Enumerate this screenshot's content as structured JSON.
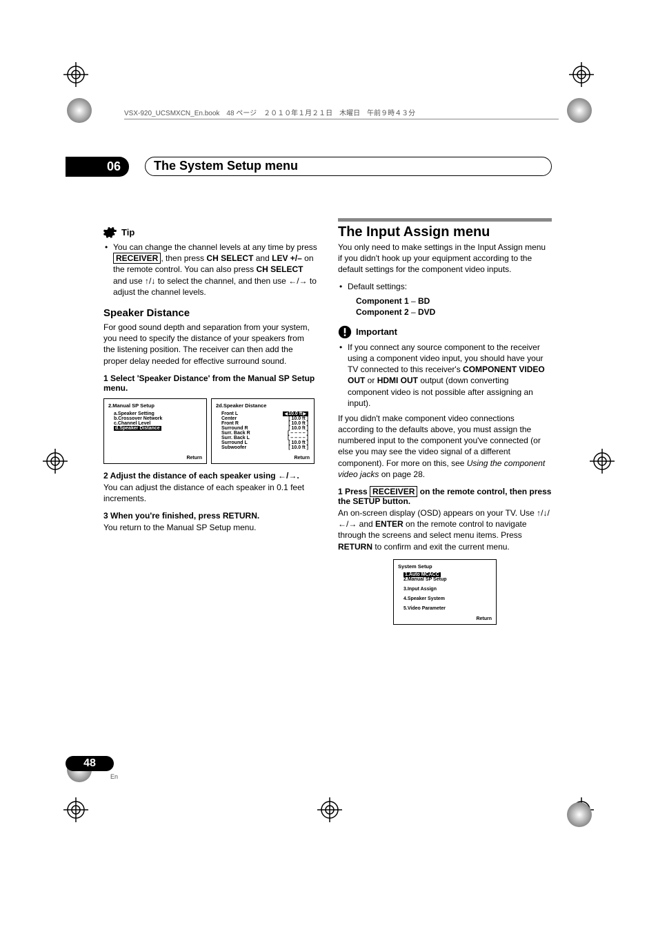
{
  "header": {
    "book_label": "VSX-920_UCSMXCN_En.book　48 ページ　２０１０年１月２１日　木曜日　午前９時４３分"
  },
  "chapter": {
    "number": "06",
    "title": "The System Setup menu"
  },
  "left": {
    "tip_label": "Tip",
    "tip_bullet_prefix": "You can change the channel levels at any time by press ",
    "tip_receiver": "RECEIVER",
    "tip_mid1": ", then press ",
    "tip_ch_select": "CH SELECT",
    "tip_mid2": " and ",
    "tip_lev": "LEV +/–",
    "tip_mid3": " on the remote control. You can also press ",
    "tip_ch_select2": "CH SELECT",
    "tip_mid4": " and use ",
    "tip_mid5": " to select the channel, and then use ",
    "tip_mid6": " to adjust the channel levels.",
    "sd_heading": "Speaker Distance",
    "sd_intro": "For good sound depth and separation from your system, you need to specify the distance of your speakers from the listening position. The receiver can then add the proper delay needed for effective surround sound.",
    "step1": "1    Select 'Speaker Distance' from the Manual SP Setup menu.",
    "step2_pre": "2    Adjust the distance of each speaker using ",
    "step2_suf": ".",
    "step2_body": "You can adjust the distance of each speaker in 0.1 feet increments.",
    "step3": "3    When you're finished, press RETURN.",
    "step3_body": "You return to the Manual SP Setup menu.",
    "osd1": {
      "title": "2.Manual  SP  Setup",
      "a": "a.Speaker  Setting",
      "b": "b.Crossover  Network",
      "c": "c.Channel  Level",
      "d": "d.Speaker  Distance",
      "return": "Return"
    },
    "osd2": {
      "title": "2d.Speaker  Distance",
      "rows": [
        {
          "l": "Front L",
          "v": "10.0 ft",
          "hl": true
        },
        {
          "l": "Center",
          "v": "10.0 ft"
        },
        {
          "l": "Front R",
          "v": "10.0 ft"
        },
        {
          "l": "Surround R",
          "v": "10.0 ft"
        },
        {
          "l": "Surr. Back R",
          "v": "– – – –"
        },
        {
          "l": "Surr. Back L",
          "v": "– – – –"
        },
        {
          "l": "Surround L",
          "v": "10.0 ft"
        },
        {
          "l": "Subwoofer",
          "v": "10.0 ft"
        }
      ],
      "return": "Return"
    }
  },
  "right": {
    "h1": "The Input Assign menu",
    "intro": "You only need to make settings in the Input Assign menu if you didn't hook up your equipment according to the default settings for the component video inputs.",
    "defaults_label": "Default settings:",
    "comp1_l": "Component 1",
    "comp1_d": " – ",
    "comp1_r": "BD",
    "comp2_l": "Component 2",
    "comp2_d": " – ",
    "comp2_r": "DVD",
    "important_label": "Important",
    "imp_bullet_1": "If you connect any source component to the receiver using a component video input, you should have your TV connected to this receiver's ",
    "imp_compvid": "COMPONENT VIDEO OUT",
    "imp_or": " or ",
    "imp_hdmi": "HDMI OUT",
    "imp_tail": " output (down converting component video is not possible after assigning an input).",
    "para2_a": "If you didn't make component video connections according to the defaults above, you must assign the numbered input to the component you've connected (or else you may see the video signal of a different component). For more on this, see ",
    "para2_it": "Using the component video jacks",
    "para2_b": " on page 28.",
    "step1_pre": "1    Press ",
    "step1_rec": "RECEIVER",
    "step1_suf": " on the remote control, then press the SETUP button.",
    "step1_body_a": "An on-screen display (OSD) appears on your TV. Use ",
    "step1_body_b": " and ",
    "step1_enter": "ENTER",
    "step1_body_c": " on the remote control to navigate through the screens and select menu items. Press ",
    "step1_return": "RETURN",
    "step1_body_d": " to confirm and exit the current menu.",
    "osd": {
      "title": "System  Setup",
      "rows": [
        {
          "t": "1.Auto  MCACC",
          "hl": true
        },
        {
          "t": "2.Manual  SP  Setup"
        },
        {
          "t": "3.Input  Assign"
        },
        {
          "t": "4.Speaker System"
        },
        {
          "t": "5.Video Parameter"
        }
      ],
      "return": "Return"
    }
  },
  "footer": {
    "page": "48",
    "lang": "En"
  },
  "colors": {
    "accent": "#888888",
    "text": "#000000"
  }
}
